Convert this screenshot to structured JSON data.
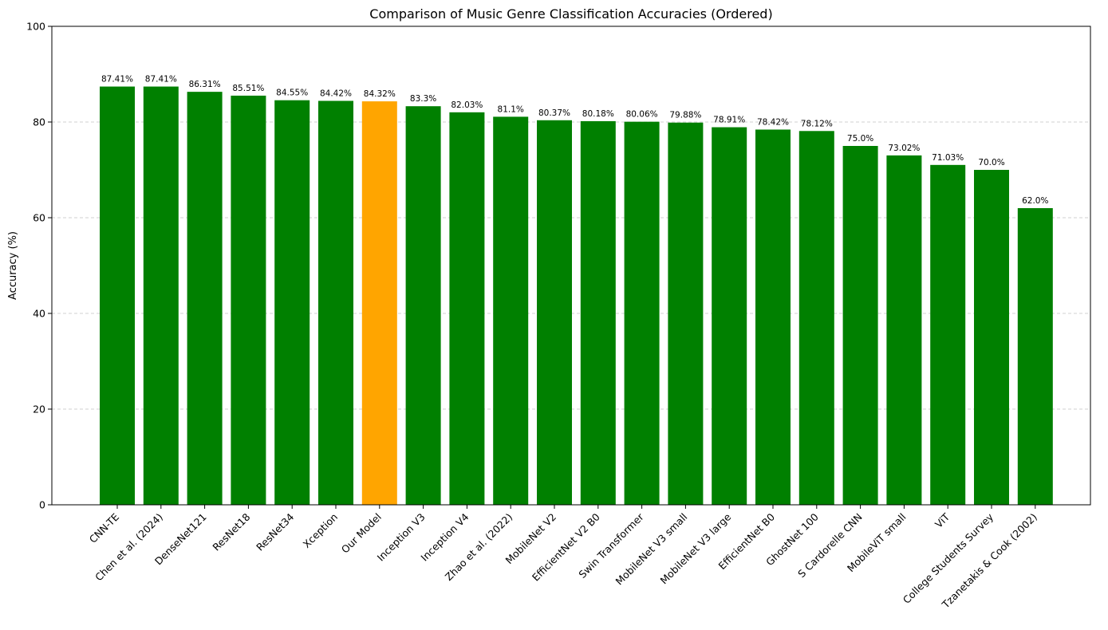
{
  "chart_data": {
    "type": "bar",
    "title": "Comparison of Music Genre Classification Accuracies (Ordered)",
    "xlabel": "",
    "ylabel": "Accuracy (%)",
    "ylim": [
      0,
      100
    ],
    "yticks": [
      0,
      20,
      40,
      60,
      80,
      100
    ],
    "grid": "y-dashed",
    "categories": [
      "CNN-TE",
      "Chen et al. (2024)",
      "DenseNet121",
      "ResNet18",
      "ResNet34",
      "Xception",
      "Our Model",
      "Inception V3",
      "Inception V4",
      "Zhao et al. (2022)",
      "MobileNet V2",
      "EfficientNet V2 B0",
      "Swin Transformer",
      "MobileNet V3 small",
      "MobileNet V3 large",
      "EfficientNet B0",
      "GhostNet 100",
      "S Cardorelle CNN",
      "MobileViT small",
      "ViT",
      "College Students Survey",
      "Tzanetakis & Cook (2002)"
    ],
    "values": [
      87.41,
      87.41,
      86.31,
      85.51,
      84.55,
      84.42,
      84.32,
      83.3,
      82.03,
      81.1,
      80.37,
      80.18,
      80.06,
      79.88,
      78.91,
      78.42,
      78.12,
      75.0,
      73.02,
      71.03,
      70.0,
      62.0
    ],
    "value_labels": [
      "87.41%",
      "87.41%",
      "86.31%",
      "85.51%",
      "84.55%",
      "84.42%",
      "84.32%",
      "83.3%",
      "82.03%",
      "81.1%",
      "80.37%",
      "80.18%",
      "80.06%",
      "79.88%",
      "78.91%",
      "78.42%",
      "78.12%",
      "75.0%",
      "73.02%",
      "71.03%",
      "70.0%",
      "62.0%"
    ],
    "highlight": "Our Model",
    "colors": {
      "default": "#008000",
      "highlight": "#FFA500"
    }
  }
}
